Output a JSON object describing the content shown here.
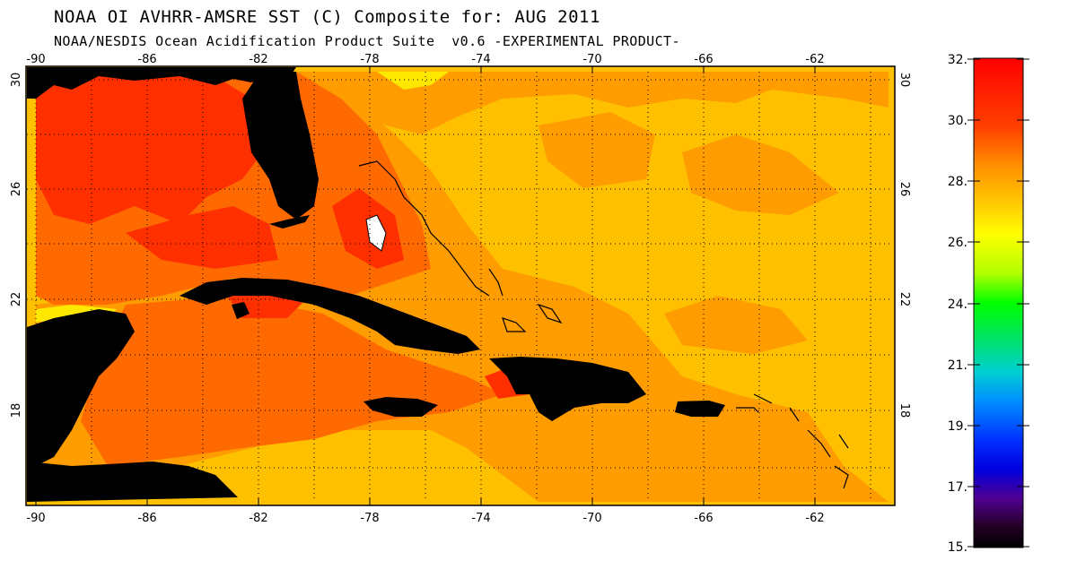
{
  "title_line1": "NOAA OI AVHRR-AMSRE SST (C) Composite for: AUG 2011",
  "title_line2": "NOAA/NESDIS Ocean Acidification Product Suite  v0.6 -EXPERIMENTAL PRODUCT-",
  "map": {
    "lon_range": [
      -90.5,
      -60
    ],
    "lat_range": [
      15.5,
      31
    ],
    "lon_tick_labels": [
      "-90",
      "-86",
      "-82",
      "-78",
      "-74",
      "-70",
      "-66",
      "-62"
    ],
    "lat_tick_labels": [
      "30",
      "26",
      "22",
      "18"
    ],
    "grid": "dotted",
    "land_color": "#000000"
  },
  "colorbar": {
    "labels": [
      "32.",
      "30.",
      "28.",
      "26.",
      "24.",
      "21.",
      "19.",
      "17.",
      "15."
    ],
    "colors_top_to_bottom": [
      "#ff0000",
      "#ff8000",
      "#ffff00",
      "#00ff00",
      "#0080ff",
      "#0000ff",
      "#000000"
    ]
  },
  "colors": {
    "sst_warmest": "#ff3000",
    "sst_warm": "#ff6a00",
    "sst_mid": "#ff9c00",
    "sst_cool": "#ffc000",
    "sst_coolest": "#ffe800"
  }
}
